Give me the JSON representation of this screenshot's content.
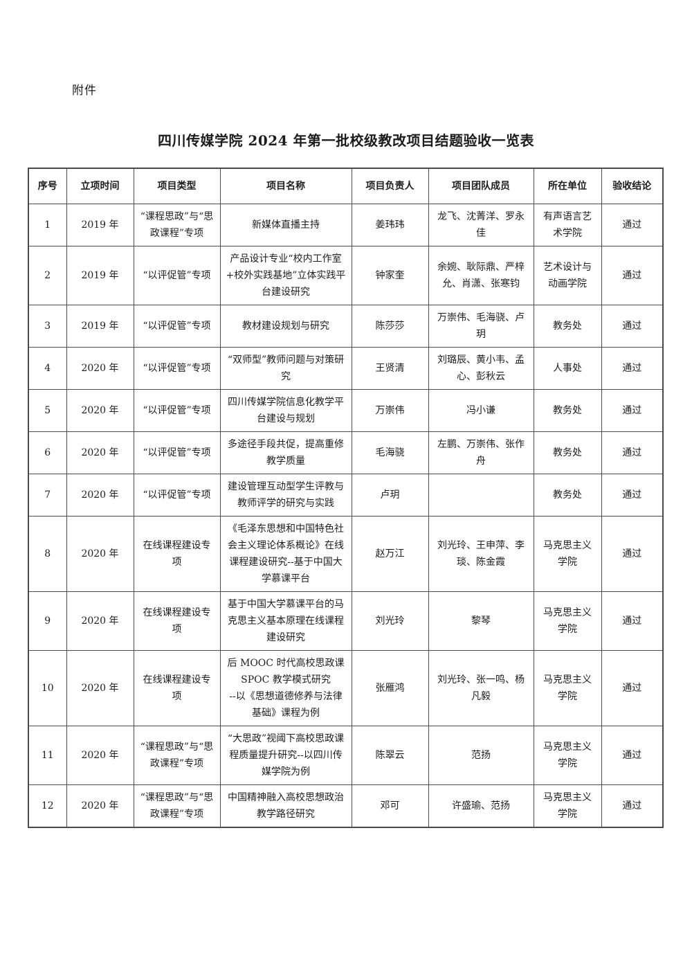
{
  "page": {
    "attachment_label": "附件",
    "title": "四川传媒学院 2024 年第一批校级教改项目结题验收一览表"
  },
  "table": {
    "columns": [
      "序号",
      "立项时间",
      "项目类型",
      "项目名称",
      "项目负责人",
      "项目团队成员",
      "所在单位",
      "验收结论"
    ],
    "rows": [
      {
        "no": "1",
        "year": "2019 年",
        "type": "“课程思政”与“思政课程”专项",
        "name": "新媒体直播主持",
        "leader": "姜玮玮",
        "team": "龙飞、沈菁洋、罗永佳",
        "unit": "有声语言艺术学院",
        "result": "通过"
      },
      {
        "no": "2",
        "year": "2019 年",
        "type": "“以评促管”专项",
        "name": "产品设计专业“校内工作室+校外实践基地”立体实践平台建设研究",
        "leader": "钟家奎",
        "team": "余婉、耿际鼎、严梓允、肖潇、张寒钧",
        "unit": "艺术设计与动画学院",
        "result": "通过"
      },
      {
        "no": "3",
        "year": "2019 年",
        "type": "“以评促管”专项",
        "name": "教材建设规划与研究",
        "leader": "陈莎莎",
        "team": "万崇伟、毛海骁、卢玥",
        "unit": "教务处",
        "result": "通过"
      },
      {
        "no": "4",
        "year": "2020 年",
        "type": "“以评促管”专项",
        "name": "“双师型”教师问题与对策研究",
        "leader": "王贤清",
        "team": "刘璐辰、黄小韦、孟心、彭秋云",
        "unit": "人事处",
        "result": "通过"
      },
      {
        "no": "5",
        "year": "2020 年",
        "type": "“以评促管”专项",
        "name": "四川传媒学院信息化教学平台建设与规划",
        "leader": "万崇伟",
        "team": "冯小谦",
        "unit": "教务处",
        "result": "通过"
      },
      {
        "no": "6",
        "year": "2020 年",
        "type": "“以评促管”专项",
        "name": "多途径手段共促，提高重修教学质量",
        "leader": "毛海骁",
        "team": "左鹏、万崇伟、张作舟",
        "unit": "教务处",
        "result": "通过"
      },
      {
        "no": "7",
        "year": "2020 年",
        "type": "“以评促管”专项",
        "name": "建设管理互动型学生评教与教师评学的研究与实践",
        "leader": "卢玥",
        "team": "",
        "unit": "教务处",
        "result": "通过"
      },
      {
        "no": "8",
        "year": "2020 年",
        "type": "在线课程建设专项",
        "name": "《毛泽东思想和中国特色社会主义理论体系概论》在线课程建设研究--基于中国大学慕课平台",
        "leader": "赵万江",
        "team": "刘光玲、王申萍、李琰、陈金霞",
        "unit": "马克思主义学院",
        "result": "通过"
      },
      {
        "no": "9",
        "year": "2020 年",
        "type": "在线课程建设专项",
        "name": "基于中国大学慕课平台的马克思主义基本原理在线课程建设研究",
        "leader": "刘光玲",
        "team": "黎琴",
        "unit": "马克思主义学院",
        "result": "通过"
      },
      {
        "no": "10",
        "year": "2020 年",
        "type": "在线课程建设专项",
        "name": "后 MOOC 时代高校思政课\nSPOC 教学模式研究\n--以《思想道德修养与法律基础》课程为例",
        "leader": "张雁鸿",
        "team": "刘光玲、张一鸣、杨凡毅",
        "unit": "马克思主义学院",
        "result": "通过"
      },
      {
        "no": "11",
        "year": "2020 年",
        "type": "“课程思政”与“思政课程”专项",
        "name": "“大思政”视阈下高校思政课程质量提升研究--以四川传媒学院为例",
        "leader": "陈翠云",
        "team": "范扬",
        "unit": "马克思主义学院",
        "result": "通过"
      },
      {
        "no": "12",
        "year": "2020 年",
        "type": "“课程思政”与“思政课程”专项",
        "name": "中国精神融入高校思想政治教学路径研究",
        "leader": "邓可",
        "team": "许盛瑜、范扬",
        "unit": "马克思主义学院",
        "result": "通过"
      }
    ]
  }
}
